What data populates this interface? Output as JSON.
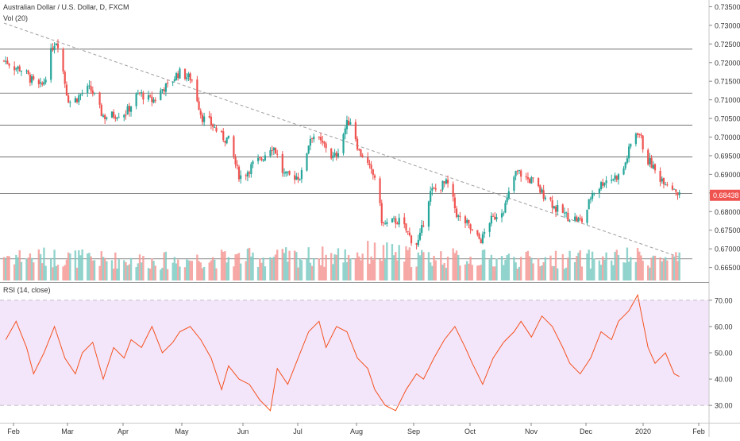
{
  "header": {
    "title": "Australian Dollar / U.S. Dollar, D, FXCM",
    "volume_label": "Vol (20)",
    "rsi_label": "RSI (14, close)"
  },
  "colors": {
    "up": "#26a69a",
    "down": "#ef5350",
    "up_volume": "#7fcdc4",
    "down_volume": "#f49a97",
    "rsi_line": "#f4511e",
    "rsi_band": "#f3e6fb",
    "price_tag": "#ef5350",
    "trendline": "#9e9e9e",
    "level_line": "#444444"
  },
  "chart_data": [
    {
      "type": "candlestick",
      "title": "Australian Dollar / U.S. Dollar, D, FXCM",
      "x_ticks": [
        "Feb",
        "Mar",
        "Apr",
        "May",
        "Jun",
        "Jul",
        "Aug",
        "Sep",
        "Oct",
        "Nov",
        "Dec",
        "2020",
        "Feb"
      ],
      "y_ticks": [
        "0.73500",
        "0.73000",
        "0.72500",
        "0.72000",
        "0.71500",
        "0.71000",
        "0.70500",
        "0.70000",
        "0.69500",
        "0.69000",
        "0.68500",
        "0.68000",
        "0.67500",
        "0.67000",
        "0.66500"
      ],
      "ylim": [
        0.6615,
        0.7368
      ],
      "last_price": "0.68438",
      "last_price_value": 0.68438,
      "horizontal_levels": [
        0.7236,
        0.7118,
        0.7032,
        0.6947,
        0.6849,
        0.6673
      ],
      "trendline": {
        "start": [
          "2019-01-01",
          0.7306
        ],
        "end": [
          "2020-01-25",
          0.6676
        ]
      },
      "anchor_dates": [
        "2019-01-01",
        "2019-01-09",
        "2019-01-22",
        "2019-01-31",
        "2019-02-08",
        "2019-02-19",
        "2019-02-28",
        "2019-03-11",
        "2019-03-20",
        "2019-03-27",
        "2019-04-04",
        "2019-04-12",
        "2019-04-18",
        "2019-04-26",
        "2019-05-09",
        "2019-05-17",
        "2019-05-27",
        "2019-06-04",
        "2019-06-12",
        "2019-06-20",
        "2019-06-27",
        "2019-07-04",
        "2019-07-09",
        "2019-07-19",
        "2019-07-25",
        "2019-08-02",
        "2019-08-07",
        "2019-08-15",
        "2019-08-26",
        "2019-09-04",
        "2019-09-12",
        "2019-09-20",
        "2019-10-02",
        "2019-10-07",
        "2019-10-14",
        "2019-10-23",
        "2019-10-30",
        "2019-11-08",
        "2019-11-15",
        "2019-11-22",
        "2019-11-29",
        "2019-12-06",
        "2019-12-13",
        "2019-12-20",
        "2019-12-31",
        "2020-01-06",
        "2020-01-13",
        "2020-01-21",
        "2020-01-24"
      ],
      "anchor_closes": [
        0.7205,
        0.7185,
        0.7135,
        0.7258,
        0.7095,
        0.7128,
        0.7055,
        0.7065,
        0.7115,
        0.7098,
        0.7135,
        0.7172,
        0.7159,
        0.7048,
        0.6995,
        0.6895,
        0.6935,
        0.6975,
        0.6895,
        0.6895,
        0.7005,
        0.6978,
        0.6945,
        0.7045,
        0.6955,
        0.6895,
        0.6765,
        0.6775,
        0.6715,
        0.6855,
        0.6875,
        0.678,
        0.6725,
        0.6775,
        0.6805,
        0.6905,
        0.6885,
        0.6845,
        0.6805,
        0.6785,
        0.6775,
        0.6855,
        0.6885,
        0.6895,
        0.7015,
        0.6935,
        0.689,
        0.6865,
        0.6844
      ],
      "volume_anchor_dates": [
        "2019-01-01",
        "2019-02-01",
        "2019-03-01",
        "2019-04-01",
        "2019-05-01",
        "2019-06-01",
        "2019-07-01",
        "2019-08-01",
        "2019-09-01",
        "2019-10-01",
        "2019-11-01",
        "2019-12-01",
        "2020-01-01",
        "2020-01-24"
      ],
      "volume_anchor_values": [
        62,
        58,
        52,
        50,
        55,
        58,
        60,
        70,
        58,
        55,
        52,
        54,
        58,
        50
      ],
      "volume_ylim": [
        0,
        120
      ]
    },
    {
      "type": "line",
      "title": "RSI (14, close)",
      "y_ticks": [
        "70.00",
        "60.00",
        "50.00",
        "40.00",
        "30.00"
      ],
      "ylim": [
        24,
        76
      ],
      "band": [
        30,
        70
      ],
      "x_dates": [
        "2019-01-02",
        "2019-01-08",
        "2019-01-14",
        "2019-01-18",
        "2019-01-24",
        "2019-01-30",
        "2019-02-05",
        "2019-02-11",
        "2019-02-15",
        "2019-02-21",
        "2019-02-27",
        "2019-03-05",
        "2019-03-11",
        "2019-03-15",
        "2019-03-21",
        "2019-03-27",
        "2019-04-02",
        "2019-04-08",
        "2019-04-12",
        "2019-04-18",
        "2019-04-24",
        "2019-04-30",
        "2019-05-06",
        "2019-05-10",
        "2019-05-16",
        "2019-05-22",
        "2019-05-28",
        "2019-06-03",
        "2019-06-07",
        "2019-06-13",
        "2019-06-19",
        "2019-06-25",
        "2019-07-01",
        "2019-07-05",
        "2019-07-11",
        "2019-07-17",
        "2019-07-23",
        "2019-07-29",
        "2019-08-02",
        "2019-08-08",
        "2019-08-14",
        "2019-08-20",
        "2019-08-26",
        "2019-08-30",
        "2019-09-05",
        "2019-09-11",
        "2019-09-17",
        "2019-09-23",
        "2019-09-27",
        "2019-10-03",
        "2019-10-09",
        "2019-10-15",
        "2019-10-21",
        "2019-10-25",
        "2019-10-31",
        "2019-11-06",
        "2019-11-12",
        "2019-11-18",
        "2019-11-22",
        "2019-11-28",
        "2019-12-04",
        "2019-12-10",
        "2019-12-16",
        "2019-12-20",
        "2019-12-26",
        "2019-12-31",
        "2020-01-06",
        "2020-01-10",
        "2020-01-16",
        "2020-01-21",
        "2020-01-24"
      ],
      "values": [
        55,
        62,
        52,
        42,
        50,
        60,
        48,
        42,
        50,
        54,
        40,
        52,
        48,
        55,
        52,
        60,
        50,
        54,
        58,
        60,
        55,
        48,
        36,
        45,
        40,
        38,
        32,
        28,
        44,
        38,
        48,
        58,
        62,
        52,
        60,
        58,
        48,
        44,
        36,
        30,
        28,
        36,
        42,
        40,
        48,
        55,
        60,
        52,
        46,
        38,
        48,
        54,
        58,
        62,
        56,
        64,
        60,
        52,
        46,
        42,
        48,
        58,
        55,
        62,
        66,
        72,
        52,
        46,
        50,
        42,
        41
      ]
    }
  ]
}
